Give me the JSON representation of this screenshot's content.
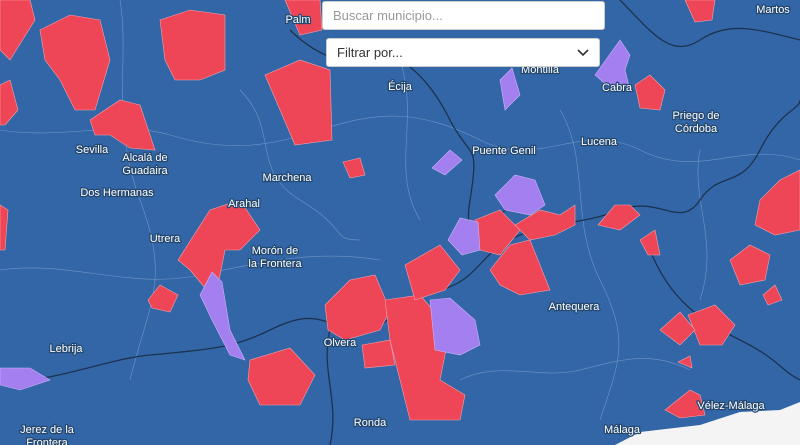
{
  "search": {
    "placeholder": "Buscar municipio..."
  },
  "filter": {
    "placeholder": "Filtrar por..."
  },
  "places": [
    {
      "lines": [
        "Palm"
      ]
    },
    {
      "lines": [
        "Martos"
      ]
    },
    {
      "lines": [
        "Montilla"
      ]
    },
    {
      "lines": [
        "Écija"
      ]
    },
    {
      "lines": [
        "Cabra"
      ]
    },
    {
      "lines": [
        "Priego de",
        "Córdoba"
      ]
    },
    {
      "lines": [
        "Sevilla"
      ]
    },
    {
      "lines": [
        "Alcalá de",
        "Guadaira"
      ]
    },
    {
      "lines": [
        "Lucena"
      ]
    },
    {
      "lines": [
        "Puente Genil"
      ]
    },
    {
      "lines": [
        "Dos Hermanas"
      ]
    },
    {
      "lines": [
        "Marchena"
      ]
    },
    {
      "lines": [
        "Arahal"
      ]
    },
    {
      "lines": [
        "Utrera"
      ]
    },
    {
      "lines": [
        "Morón de",
        "la Frontera"
      ]
    },
    {
      "lines": [
        "Antequera"
      ]
    },
    {
      "lines": [
        "Lebrija"
      ]
    },
    {
      "lines": [
        "Olvera"
      ]
    },
    {
      "lines": [
        "Ronda"
      ]
    },
    {
      "lines": [
        "Vélez-Málaga"
      ]
    },
    {
      "lines": [
        "Jerez de la",
        "Frontera"
      ]
    },
    {
      "lines": [
        "Málaga"
      ]
    }
  ]
}
